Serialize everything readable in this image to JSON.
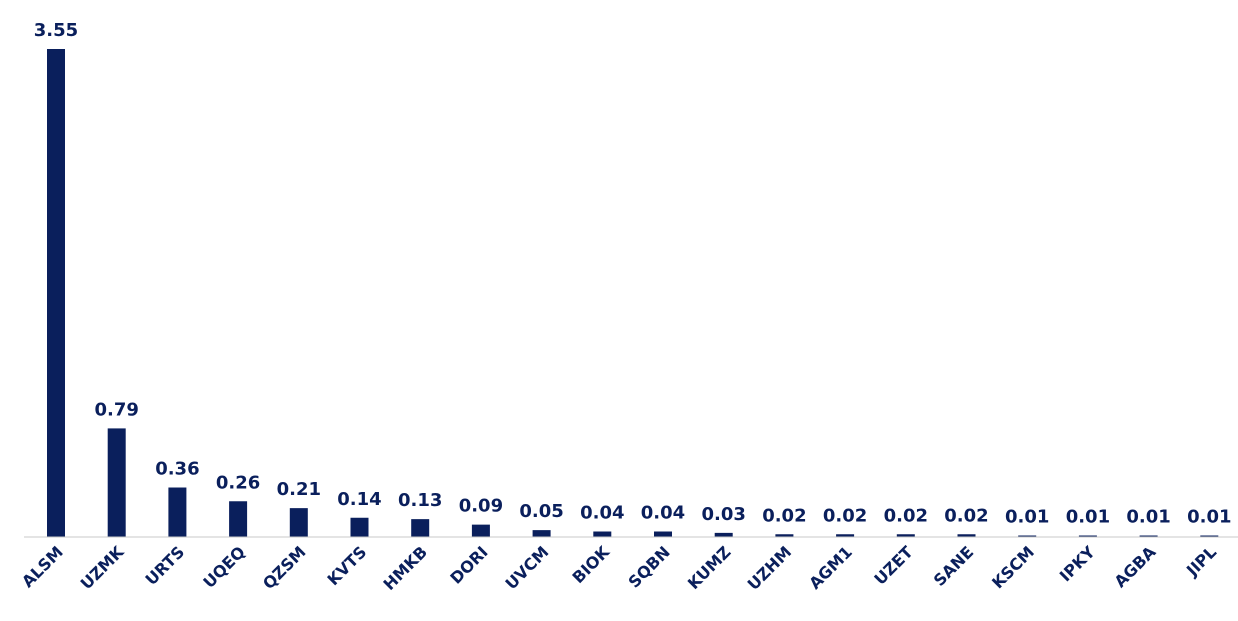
{
  "colors": {
    "bar": "#0a1f5c",
    "text": "#0a1f5c",
    "axis": "#c8c8c8"
  },
  "chart_data": {
    "type": "bar",
    "title": "",
    "xlabel": "",
    "ylabel": "",
    "categories": [
      "ALSM",
      "UZMK",
      "URTS",
      "UQEQ",
      "QZSM",
      "KVTS",
      "HMKB",
      "DORI",
      "UVCM",
      "BIOK",
      "SQBN",
      "KUMZ",
      "UZHM",
      "AGM1",
      "UZET",
      "SANE",
      "KSCM",
      "IPKY",
      "AGBA",
      "JIPL"
    ],
    "values": [
      3.55,
      0.79,
      0.36,
      0.26,
      0.21,
      0.14,
      0.13,
      0.09,
      0.05,
      0.04,
      0.04,
      0.03,
      0.02,
      0.02,
      0.02,
      0.02,
      0.01,
      0.01,
      0.01,
      0.01
    ],
    "ylim": [
      0,
      3.55
    ],
    "grid": false,
    "legend": "none",
    "value_labels": true
  }
}
